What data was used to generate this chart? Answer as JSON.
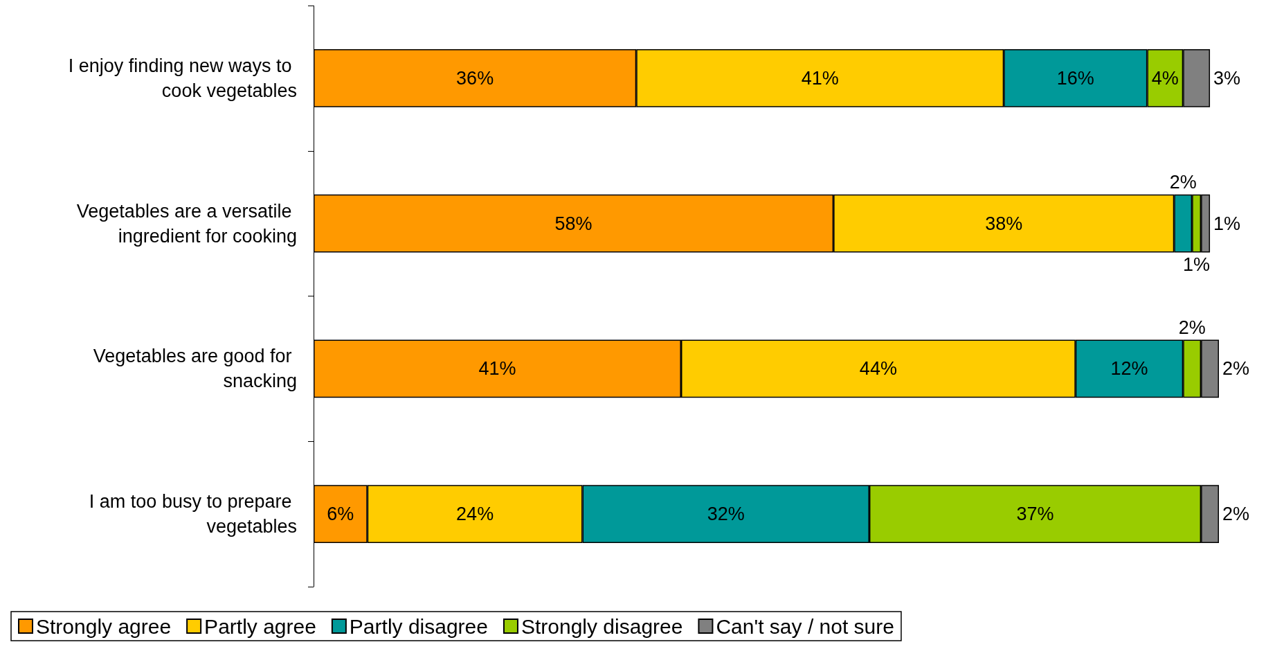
{
  "chart_data": {
    "type": "bar",
    "orientation": "horizontal",
    "stacked": true,
    "categories": [
      "I enjoy finding new ways to cook vegetables",
      "Vegetables are a versatile ingredient for cooking",
      "Vegetables are good for snacking",
      "I am too busy to prepare vegetables"
    ],
    "series": [
      {
        "name": "Strongly agree",
        "color": "#ff9900",
        "values": [
          36,
          58,
          41,
          6
        ],
        "value_labels": [
          "36%",
          "58%",
          "41%",
          "6%"
        ]
      },
      {
        "name": "Partly agree",
        "color": "#ffcc00",
        "values": [
          41,
          38,
          44,
          24
        ],
        "value_labels": [
          "41%",
          "38%",
          "44%",
          "24%"
        ]
      },
      {
        "name": "Partly disagree",
        "color": "#009999",
        "values": [
          16,
          2,
          12,
          32
        ],
        "value_labels": [
          "16%",
          "2%",
          "12%",
          "32%"
        ]
      },
      {
        "name": "Strongly disagree",
        "color": "#99cc00",
        "values": [
          4,
          1,
          2,
          37
        ],
        "value_labels": [
          "4%",
          "1%",
          "2%",
          "37%"
        ]
      },
      {
        "name": "Can't say / not sure",
        "color": "#808080",
        "values": [
          3,
          1,
          2,
          2
        ],
        "value_labels": [
          "3%",
          "1%",
          "2%",
          "2%"
        ]
      }
    ],
    "xlim": [
      0,
      101
    ],
    "tick_labels": "y",
    "grid": false,
    "legend": "bottom"
  }
}
